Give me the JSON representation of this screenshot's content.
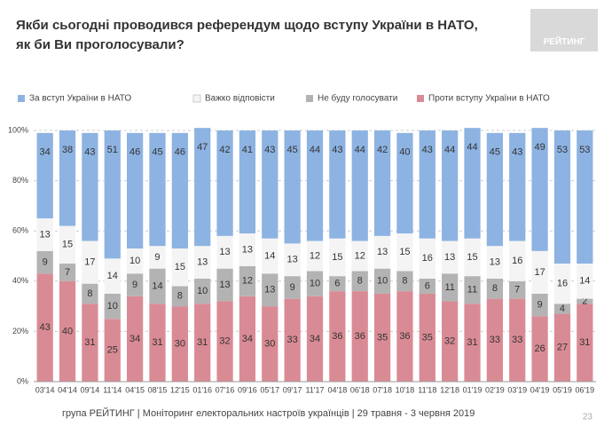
{
  "chart_data": {
    "type": "stacked_bar",
    "title": "Якби сьогодні проводився референдум щодо вступу України в НАТО, як би Ви проголосували?",
    "categories": [
      "03'14",
      "04'14",
      "09'14",
      "11'14",
      "04'15",
      "08'15",
      "12'15",
      "01'16",
      "07'16",
      "09'16",
      "05'17",
      "09'17",
      "11'17",
      "04'18",
      "06'18",
      "07'18",
      "10'18",
      "11'18",
      "12'18",
      "01'19",
      "02'19",
      "03'19",
      "04'19",
      "05'19",
      "06'19"
    ],
    "series": [
      {
        "name": "Проти вступу України в НАТО",
        "color": "#d98b95",
        "values": [
          43,
          40,
          31,
          25,
          34,
          31,
          30,
          31,
          32,
          34,
          30,
          33,
          34,
          36,
          36,
          35,
          36,
          35,
          32,
          31,
          33,
          33,
          26,
          27,
          31
        ]
      },
      {
        "name": "Не буду голосувати",
        "color": "#b3b3b3",
        "values": [
          9,
          7,
          8,
          10,
          9,
          14,
          8,
          10,
          13,
          12,
          13,
          9,
          10,
          6,
          8,
          10,
          8,
          6,
          11,
          11,
          8,
          7,
          9,
          4,
          2
        ]
      },
      {
        "name": "Важко відповісти",
        "color": "#f4f4f4",
        "values": [
          13,
          15,
          17,
          14,
          10,
          9,
          15,
          13,
          13,
          13,
          14,
          13,
          12,
          15,
          12,
          13,
          15,
          16,
          13,
          15,
          13,
          16,
          17,
          16,
          14
        ]
      },
      {
        "name": "За вступ України в НАТО",
        "color": "#8db3e2",
        "values": [
          34,
          38,
          43,
          51,
          46,
          45,
          46,
          47,
          42,
          41,
          43,
          45,
          44,
          43,
          44,
          42,
          40,
          43,
          44,
          44,
          45,
          43,
          49,
          53,
          53
        ]
      }
    ],
    "legend_order": [
      3,
      2,
      1,
      0
    ],
    "ylim": [
      0,
      100
    ],
    "yticks": [
      {
        "value": 0,
        "label": "0%"
      },
      {
        "value": 20,
        "label": "20%"
      },
      {
        "value": 40,
        "label": "40%"
      },
      {
        "value": 60,
        "label": "60%"
      },
      {
        "value": 80,
        "label": "80%"
      },
      {
        "value": 100,
        "label": "100%"
      }
    ],
    "grid": true
  },
  "logo": "РЕЙТИНГ",
  "footer": "група РЕЙТИНГ | Моніторинг електоральних настроїв українців  | 29 травня - 3 червня 2019",
  "page_number": "23"
}
